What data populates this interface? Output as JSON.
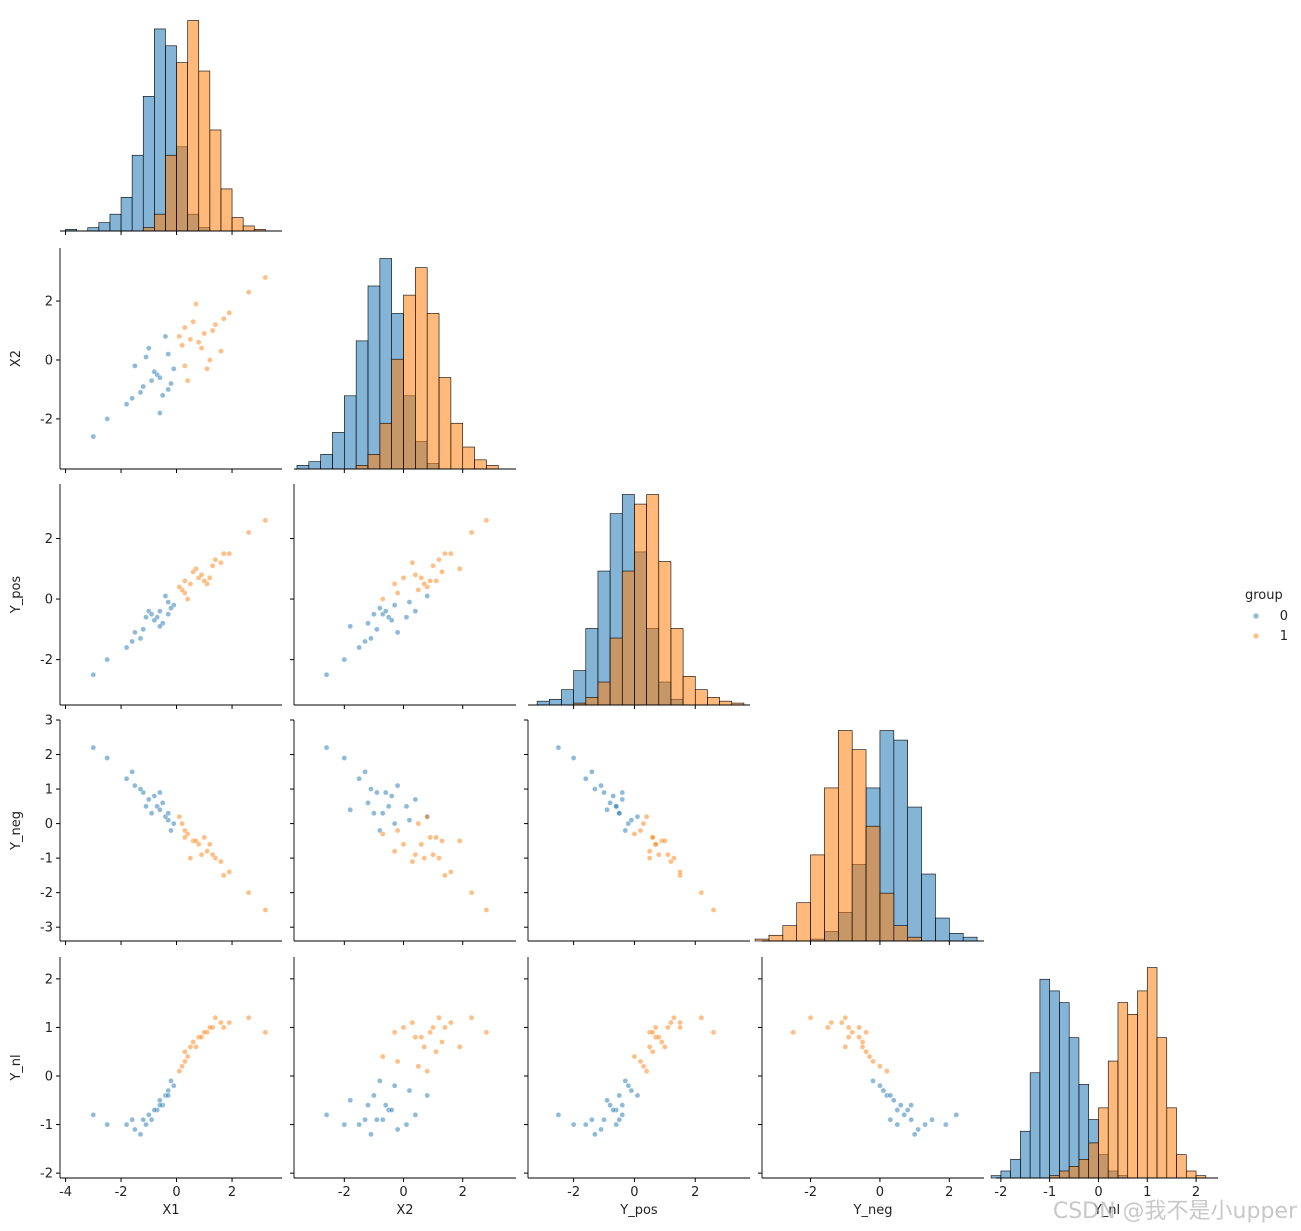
{
  "chart_data": {
    "type": "pairplot",
    "variables": [
      "X1",
      "X2",
      "Y_pos",
      "Y_neg",
      "Y_nl"
    ],
    "legend_title": "group",
    "legend": "right",
    "watermark": "CSDN @我不是小upper",
    "axes": [
      {
        "lim": [
          -4.2,
          3.8
        ],
        "xticks": [
          -4,
          -2,
          0,
          2
        ],
        "yticks": []
      },
      {
        "lim": [
          -3.7,
          3.8
        ],
        "xticks": [
          -2,
          0,
          2
        ],
        "yticks": [
          -2,
          0,
          2
        ]
      },
      {
        "lim": [
          -3.5,
          3.8
        ],
        "xticks": [
          -2,
          0,
          2
        ],
        "yticks": [
          -2,
          0,
          2
        ]
      },
      {
        "lim": [
          -3.4,
          3.0
        ],
        "xticks": [
          -2,
          0,
          2
        ],
        "yticks": [
          -3,
          -2,
          -1,
          0,
          1,
          2,
          3
        ]
      },
      {
        "lim": [
          -2.1,
          2.45
        ],
        "xticks": [
          -2,
          -1,
          0,
          1,
          2
        ],
        "yticks": [
          -2,
          -1,
          0,
          1,
          2
        ]
      }
    ],
    "series": [
      {
        "name": "0",
        "color": "#1f77b4",
        "points": [
          [
            -0.7,
            -0.5,
            -0.6,
            0.5,
            -0.7
          ],
          [
            -1.2,
            -0.9,
            -1.0,
            0.9,
            -0.9
          ],
          [
            -0.3,
            0.2,
            -0.1,
            0.1,
            -0.3
          ],
          [
            -1.8,
            -1.5,
            -1.6,
            1.3,
            -1.0
          ],
          [
            -0.5,
            -1.2,
            -0.8,
            0.6,
            -0.6
          ],
          [
            -1.0,
            0.4,
            -0.4,
            0.7,
            -0.8
          ],
          [
            -2.5,
            -2.0,
            -2.0,
            1.9,
            -1.0
          ],
          [
            -0.1,
            -0.3,
            -0.2,
            0.0,
            -0.2
          ],
          [
            -0.9,
            -0.7,
            -0.5,
            0.3,
            -0.9
          ],
          [
            -1.5,
            -0.2,
            -1.1,
            1.1,
            -1.1
          ],
          [
            -0.6,
            -1.8,
            -0.9,
            0.4,
            -0.5
          ],
          [
            -0.4,
            0.8,
            0.1,
            0.2,
            -0.4
          ],
          [
            -1.3,
            -1.1,
            -1.3,
            1.0,
            -1.2
          ],
          [
            -0.8,
            -0.4,
            -0.7,
            0.8,
            -0.7
          ],
          [
            -3.0,
            -2.6,
            -2.5,
            2.2,
            -0.8
          ],
          [
            -0.2,
            -0.8,
            -0.3,
            -0.2,
            -0.1
          ],
          [
            -1.1,
            0.1,
            -0.6,
            0.5,
            -1.0
          ],
          [
            -0.6,
            -0.6,
            -0.4,
            0.9,
            -0.6
          ],
          [
            -1.6,
            -1.3,
            -1.4,
            1.5,
            -0.9
          ],
          [
            -0.3,
            -1.0,
            -0.5,
            0.3,
            -0.4
          ]
        ],
        "hist": [
          [
            1,
            0,
            2,
            5,
            10,
            20,
            45,
            80,
            120,
            110,
            50,
            10,
            2,
            0,
            0,
            0,
            0,
            0,
            0
          ],
          [
            2,
            4,
            8,
            20,
            40,
            70,
            100,
            115,
            85,
            40,
            15,
            3,
            0,
            0,
            0,
            0,
            0,
            0
          ],
          [
            2,
            3,
            8,
            18,
            40,
            70,
            100,
            110,
            80,
            40,
            12,
            3,
            0,
            0,
            0,
            0,
            0
          ],
          [
            0,
            0,
            0,
            0,
            1,
            5,
            15,
            40,
            80,
            110,
            105,
            70,
            35,
            12,
            4,
            2
          ],
          [
            1,
            3,
            8,
            20,
            45,
            85,
            80,
            75,
            60,
            40,
            25,
            10,
            3,
            1,
            0,
            0,
            0,
            0,
            0,
            0,
            0,
            0
          ]
        ]
      },
      {
        "name": "1",
        "color": "#ff7f0e",
        "points": [
          [
            0.8,
            0.6,
            0.7,
            -0.6,
            0.8
          ],
          [
            1.3,
            1.0,
            1.1,
            -0.9,
            1.0
          ],
          [
            0.3,
            -0.2,
            0.2,
            -0.2,
            0.3
          ],
          [
            1.9,
            1.6,
            1.5,
            -1.4,
            1.1
          ],
          [
            0.6,
            1.3,
            0.9,
            -0.5,
            0.7
          ],
          [
            1.1,
            -0.3,
            0.5,
            -0.8,
            0.9
          ],
          [
            2.6,
            2.3,
            2.2,
            -2.0,
            1.2
          ],
          [
            0.2,
            0.5,
            0.3,
            0.0,
            0.2
          ],
          [
            1.0,
            0.9,
            0.6,
            -0.4,
            0.9
          ],
          [
            1.6,
            0.3,
            1.2,
            -1.1,
            1.1
          ],
          [
            0.7,
            1.9,
            1.0,
            -0.5,
            0.6
          ],
          [
            0.4,
            -0.7,
            0.0,
            -0.3,
            0.4
          ],
          [
            1.4,
            1.2,
            1.3,
            -1.0,
            1.2
          ],
          [
            0.9,
            0.4,
            0.8,
            -0.9,
            0.8
          ],
          [
            3.2,
            2.8,
            2.6,
            -2.5,
            0.9
          ],
          [
            0.1,
            0.8,
            0.4,
            0.2,
            0.1
          ],
          [
            1.2,
            0.0,
            0.7,
            -0.6,
            1.0
          ],
          [
            0.5,
            0.7,
            0.5,
            -1.0,
            0.6
          ],
          [
            1.7,
            1.4,
            1.5,
            -1.5,
            1.0
          ],
          [
            0.3,
            1.1,
            0.6,
            -0.4,
            0.5
          ]
        ],
        "hist": [
          [
            0,
            0,
            0,
            0,
            0,
            0,
            0,
            2,
            10,
            45,
            100,
            125,
            95,
            60,
            25,
            8,
            3,
            1,
            0
          ],
          [
            0,
            0,
            0,
            0,
            0,
            2,
            8,
            25,
            60,
            95,
            110,
            85,
            50,
            25,
            12,
            5,
            2,
            0
          ],
          [
            0,
            0,
            0,
            1,
            4,
            12,
            35,
            70,
            105,
            110,
            75,
            40,
            15,
            8,
            4,
            2,
            1
          ],
          [
            1,
            3,
            8,
            20,
            45,
            80,
            110,
            100,
            60,
            25,
            8,
            2,
            0,
            0,
            0,
            0
          ],
          [
            0,
            0,
            0,
            0,
            0,
            0,
            1,
            3,
            5,
            8,
            15,
            30,
            50,
            75,
            70,
            80,
            90,
            60,
            30,
            10,
            3,
            1
          ]
        ]
      }
    ],
    "bins": [
      [
        -4.0,
        -3.6,
        -3.2,
        -2.8,
        -2.4,
        -2.0,
        -1.6,
        -1.2,
        -0.8,
        -0.4,
        0,
        0.4,
        0.8,
        1.2,
        1.6,
        2.0,
        2.4,
        2.8,
        3.2,
        3.6
      ],
      [
        -3.6,
        -3.2,
        -2.8,
        -2.4,
        -2.0,
        -1.6,
        -1.2,
        -0.8,
        -0.4,
        0,
        0.4,
        0.8,
        1.2,
        1.6,
        2.0,
        2.4,
        2.8,
        3.2,
        3.6
      ],
      [
        -3.2,
        -2.8,
        -2.4,
        -2.0,
        -1.6,
        -1.2,
        -0.8,
        -0.4,
        0,
        0.4,
        0.8,
        1.2,
        1.6,
        2.0,
        2.4,
        2.8,
        3.2,
        3.6
      ],
      [
        -3.6,
        -3.2,
        -2.8,
        -2.4,
        -2.0,
        -1.6,
        -1.2,
        -0.8,
        -0.4,
        0,
        0.4,
        0.8,
        1.2,
        1.6,
        2.0,
        2.4,
        2.8
      ],
      [
        -2.2,
        -2.0,
        -1.8,
        -1.6,
        -1.4,
        -1.2,
        -1.0,
        -0.8,
        -0.6,
        -0.4,
        -0.2,
        0,
        0.2,
        0.4,
        0.6,
        0.8,
        1.0,
        1.2,
        1.4,
        1.6,
        1.8,
        2.0,
        2.2
      ]
    ]
  }
}
